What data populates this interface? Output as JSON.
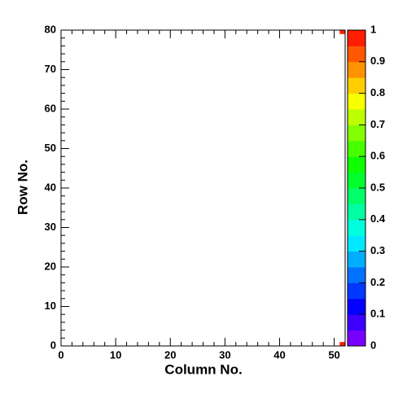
{
  "chart_data": {
    "type": "heatmap",
    "x_label": "Column No.",
    "y_label": "Row No.",
    "xlim": [
      0,
      52
    ],
    "xticks": [
      0,
      10,
      20,
      30,
      40,
      50
    ],
    "ylim": [
      0,
      80
    ],
    "yticks": [
      0,
      10,
      20,
      30,
      40,
      50,
      60,
      70,
      80
    ],
    "zlim": [
      0,
      1
    ],
    "zticks": [
      0,
      0.1,
      0.2,
      0.3,
      0.4,
      0.5,
      0.6,
      0.7,
      0.8,
      0.9,
      1
    ],
    "zlevels": 20,
    "cells": [
      {
        "x": [
          51,
          52
        ],
        "y": [
          0,
          1
        ],
        "value": 1
      },
      {
        "x": [
          51,
          52
        ],
        "y": [
          79,
          80
        ],
        "value": 1
      }
    ]
  }
}
